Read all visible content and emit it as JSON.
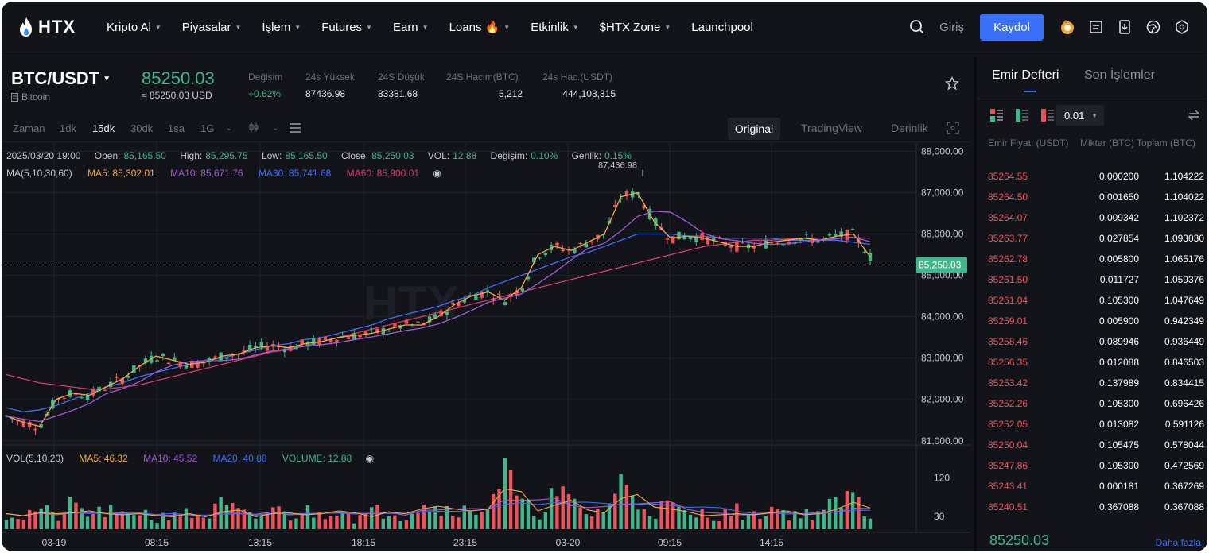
{
  "brand": {
    "name": "HTX"
  },
  "nav": {
    "items": [
      {
        "label": "Kripto Al",
        "caret": true
      },
      {
        "label": "Piyasalar",
        "caret": true
      },
      {
        "label": "İşlem",
        "caret": true
      },
      {
        "label": "Futures",
        "caret": true
      },
      {
        "label": "Earn",
        "caret": true
      },
      {
        "label": "Loans 🔥",
        "caret": true
      },
      {
        "label": "Etkinlik",
        "caret": true
      },
      {
        "label": "$HTX Zone",
        "caret": true
      },
      {
        "label": "Launchpool",
        "caret": false
      }
    ],
    "login": "Giriş",
    "register": "Kaydol"
  },
  "ticker": {
    "pair": "BTC/USDT",
    "coin": "Bitcoin",
    "last": "85250.03",
    "last_usd": "≈ 85250.03 USD",
    "stats": [
      {
        "label": "Değişim",
        "value": "+0.62%",
        "positive": true
      },
      {
        "label": "24s Yüksek",
        "value": "87436.98"
      },
      {
        "label": "24S Düşük",
        "value": "83381.68"
      },
      {
        "label": "24S Hacim(BTC)",
        "value": "5,212"
      },
      {
        "label": "24s Hac.(USDT)",
        "value": "444,103,315"
      }
    ]
  },
  "toolbar": {
    "intervals": [
      "Zaman",
      "1dk",
      "15dk",
      "30dk",
      "1sa",
      "1G"
    ],
    "active_interval": "15dk",
    "views": [
      "Original",
      "TradingView",
      "Derinlik"
    ]
  },
  "legend": {
    "date": "2025/03/20 19:00",
    "open_label": "Open:",
    "open": "85,165.50",
    "high_label": "High:",
    "high": "85,295.75",
    "low_label": "Low:",
    "low": "85,165.50",
    "close_label": "Close:",
    "close": "85,250.03",
    "vol_label": "VOL:",
    "vol": "12.88",
    "chg_label": "Değişim:",
    "chg": "0.10%",
    "amp_label": "Genlik:",
    "amp": "0.15%",
    "ma_title": "MA(5,10,30,60)",
    "ma5": "MA5: 85,302.01",
    "ma10": "MA10: 85,671.76",
    "ma30": "MA30: 85,741.68",
    "ma60": "MA60: 85,900.01",
    "vol_title": "VOL(5,10,20)",
    "vma5": "MA5: 46.32",
    "vma10": "MA10: 45.52",
    "vma20": "MA20: 40.88",
    "volume": "VOLUME: 12.88"
  },
  "chart_data": {
    "type": "candlestick",
    "y_ticks": [
      "88,000.00",
      "87,000.00",
      "86,000.00",
      "85,000.00",
      "84,000.00",
      "83,000.00",
      "82,000.00",
      "81,000.00"
    ],
    "ylim": [
      80900,
      88200
    ],
    "vol_ticks": [
      "120",
      "30"
    ],
    "x_ticks": [
      "03-19",
      "08:15",
      "13:15",
      "18:15",
      "23:15",
      "03-20",
      "09:15",
      "14:15"
    ],
    "current_price": "85,250.03",
    "high_marker": "87,436.98",
    "ma5": [
      81600,
      81450,
      81350,
      82000,
      82150,
      82100,
      82300,
      82500,
      82800,
      83050,
      82950,
      82850,
      82900,
      83050,
      83100,
      83250,
      83300,
      83250,
      83350,
      83400,
      83500,
      83550,
      83600,
      83700,
      83800,
      83800,
      84000,
      84300,
      84500,
      84600,
      84400,
      84700,
      85500,
      85700,
      85600,
      85800,
      86000,
      86900,
      87000,
      86300,
      85900,
      85950,
      85900,
      85800,
      85700,
      85700,
      85800,
      85850,
      85900,
      85850,
      85950,
      86000,
      85450
    ],
    "ma30": [
      81800,
      81700,
      81750,
      81850,
      82000,
      82150,
      82300,
      82400,
      82550,
      82650,
      82750,
      82850,
      82950,
      83000,
      83100,
      83200,
      83300,
      83350,
      83450,
      83500,
      83600,
      83700,
      83800,
      83950,
      84050,
      84150,
      84250,
      84400,
      84500,
      84700,
      84850,
      85000,
      85150,
      85300,
      85450,
      85550,
      85700,
      85850,
      86000,
      86000,
      86000,
      85950,
      85950,
      85900,
      85900,
      85900,
      85900,
      85850,
      85850,
      85850,
      85850,
      85800,
      85750
    ],
    "ma60": [
      82600,
      82500,
      82400,
      82350,
      82300,
      82250,
      82250,
      82300,
      82350,
      82450,
      82550,
      82650,
      82750,
      82850,
      82950,
      83050,
      83150,
      83200,
      83300,
      83400,
      83500,
      83600,
      83700,
      83800,
      83900,
      84000,
      84100,
      84200,
      84300,
      84400,
      84500,
      84600,
      84700,
      84800,
      84900,
      85000,
      85100,
      85200,
      85300,
      85400,
      85500,
      85600,
      85700,
      85750,
      85800,
      85850,
      85850,
      85880,
      85900,
      85900,
      85900,
      85910,
      85900
    ],
    "volume": [
      40,
      30,
      55,
      25,
      60,
      35,
      45,
      30,
      50,
      20,
      45,
      35,
      30,
      60,
      40,
      25,
      55,
      30,
      45,
      35,
      60,
      25,
      40,
      50,
      30,
      75,
      45,
      60,
      35,
      70,
      140,
      55,
      40,
      85,
      65,
      35,
      50,
      110,
      70,
      45,
      60,
      30,
      40,
      35,
      45,
      30,
      55,
      40,
      35,
      45,
      60,
      80,
      30
    ]
  },
  "panel": {
    "tab_book": "Emir Defteri",
    "tab_trades": "Son İşlemler",
    "precision": "0.01",
    "col_price": "Emir Fiyatı (USDT)",
    "col_amount": "Miktar (BTC)",
    "col_total": "Toplam (BTC)",
    "asks": [
      {
        "price": "85264.55",
        "amount": "0.000200",
        "total": "1.104222"
      },
      {
        "price": "85264.50",
        "amount": "0.001650",
        "total": "1.104022"
      },
      {
        "price": "85264.07",
        "amount": "0.009342",
        "total": "1.102372"
      },
      {
        "price": "85263.77",
        "amount": "0.027854",
        "total": "1.093030"
      },
      {
        "price": "85262.78",
        "amount": "0.005800",
        "total": "1.065176"
      },
      {
        "price": "85261.50",
        "amount": "0.011727",
        "total": "1.059376"
      },
      {
        "price": "85261.04",
        "amount": "0.105300",
        "total": "1.047649"
      },
      {
        "price": "85259.01",
        "amount": "0.005900",
        "total": "0.942349"
      },
      {
        "price": "85258.46",
        "amount": "0.089946",
        "total": "0.936449"
      },
      {
        "price": "85256.35",
        "amount": "0.012088",
        "total": "0.846503"
      },
      {
        "price": "85253.42",
        "amount": "0.137989",
        "total": "0.834415"
      },
      {
        "price": "85252.26",
        "amount": "0.105300",
        "total": "0.696426"
      },
      {
        "price": "85252.05",
        "amount": "0.013082",
        "total": "0.591126"
      },
      {
        "price": "85250.04",
        "amount": "0.105475",
        "total": "0.578044"
      },
      {
        "price": "85247.86",
        "amount": "0.105300",
        "total": "0.472569"
      },
      {
        "price": "85243.41",
        "amount": "0.000181",
        "total": "0.367269"
      },
      {
        "price": "85240.51",
        "amount": "0.367088",
        "total": "0.367088"
      }
    ],
    "last": "85250.03",
    "more": "Daha fazla"
  },
  "colors": {
    "up": "#3fb68b",
    "down": "#f0525c",
    "accent": "#3a6ff8",
    "ma5": "#f2a93b",
    "ma10": "#a05cd6",
    "ma30": "#3a6ff8",
    "ma60": "#d63a6a"
  }
}
